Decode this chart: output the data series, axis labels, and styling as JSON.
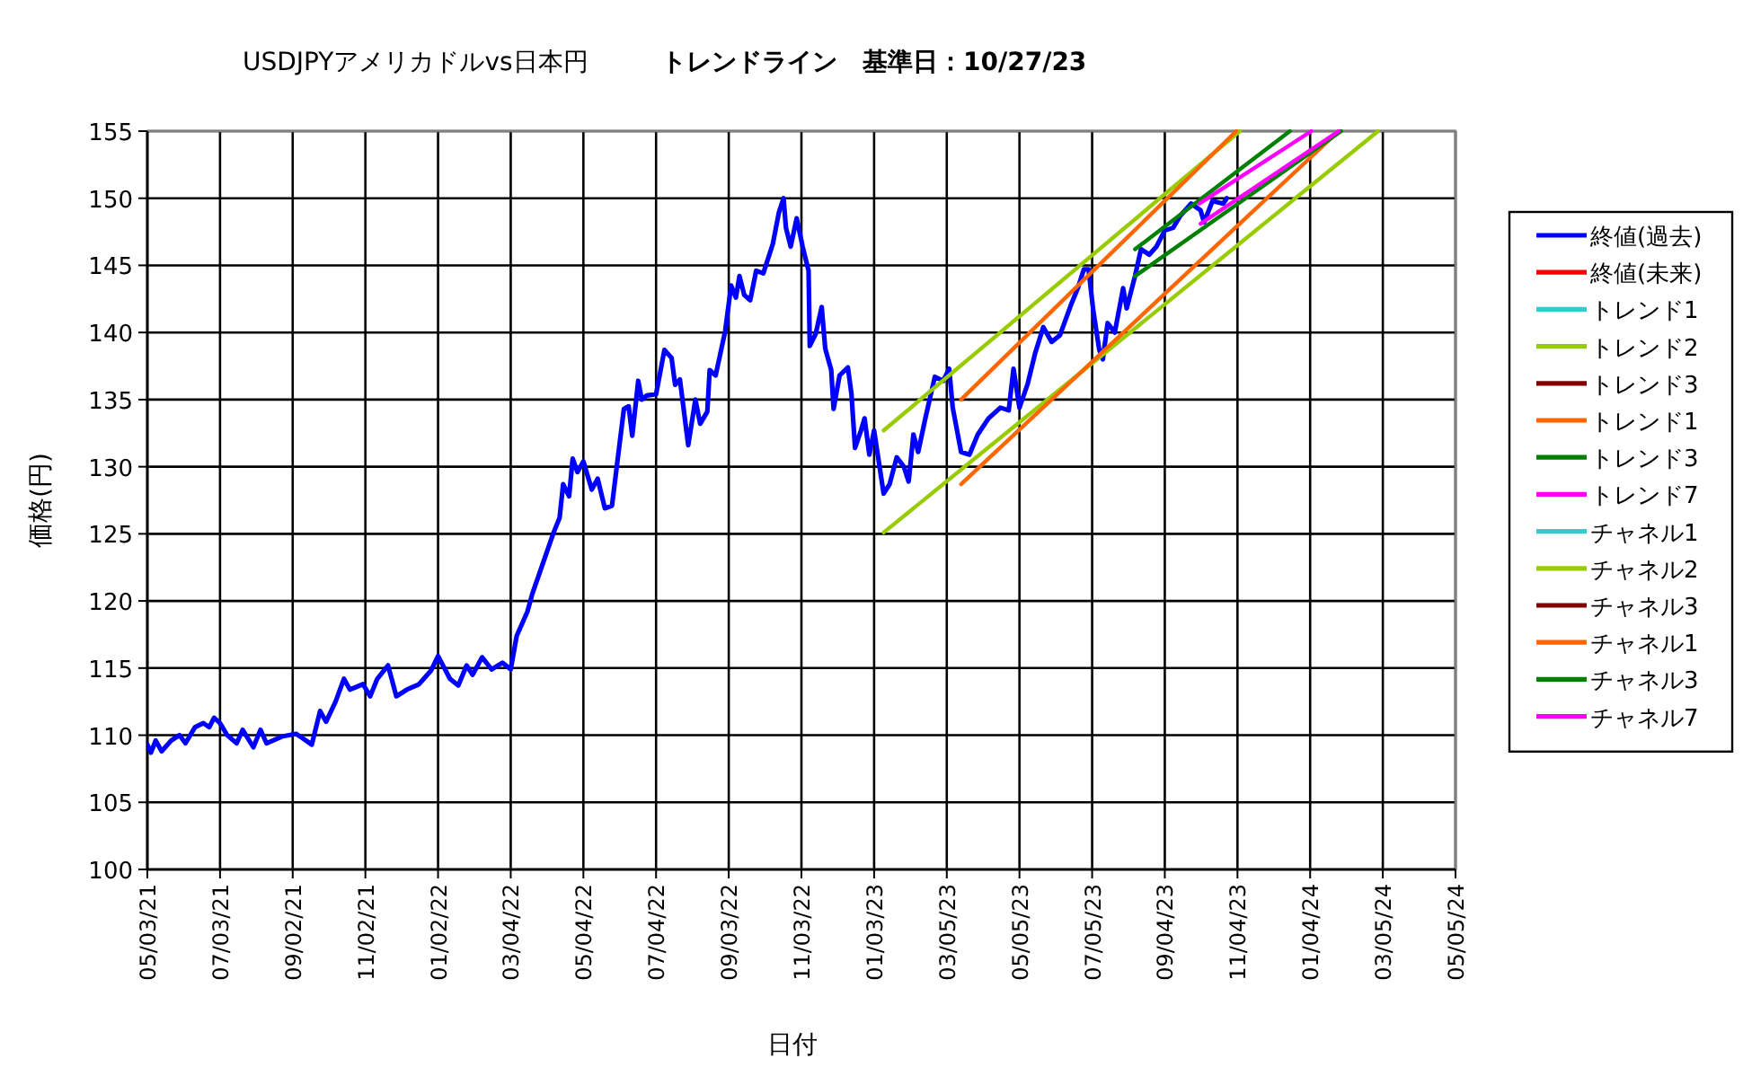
{
  "chart_data": {
    "type": "line",
    "title": "USDJPYアメリカドルvs日本円",
    "subtitle": "トレンドライン　基準日：10/27/23",
    "xlabel": "日付",
    "ylabel": "価格(円)",
    "xlim": [
      "2021-05-03",
      "2024-05-05"
    ],
    "xticks": [
      {
        "value": "2021-05-03",
        "label": "05/03/21"
      },
      {
        "value": "2021-07-03",
        "label": "07/03/21"
      },
      {
        "value": "2021-09-02",
        "label": "09/02/21"
      },
      {
        "value": "2021-11-02",
        "label": "11/02/21"
      },
      {
        "value": "2022-01-02",
        "label": "01/02/22"
      },
      {
        "value": "2022-03-04",
        "label": "03/04/22"
      },
      {
        "value": "2022-05-04",
        "label": "05/04/22"
      },
      {
        "value": "2022-07-04",
        "label": "07/04/22"
      },
      {
        "value": "2022-09-03",
        "label": "09/03/22"
      },
      {
        "value": "2022-11-03",
        "label": "11/03/22"
      },
      {
        "value": "2023-01-03",
        "label": "01/03/23"
      },
      {
        "value": "2023-03-05",
        "label": "03/05/23"
      },
      {
        "value": "2023-05-05",
        "label": "05/05/23"
      },
      {
        "value": "2023-07-05",
        "label": "07/05/23"
      },
      {
        "value": "2023-09-04",
        "label": "09/04/23"
      },
      {
        "value": "2023-11-04",
        "label": "11/04/23"
      },
      {
        "value": "2024-01-04",
        "label": "01/04/24"
      },
      {
        "value": "2024-03-05",
        "label": "03/05/24"
      },
      {
        "value": "2024-05-05",
        "label": "05/05/24"
      }
    ],
    "ylim": [
      100,
      155
    ],
    "yticks": [
      100,
      105,
      110,
      115,
      120,
      125,
      130,
      135,
      140,
      145,
      150,
      155
    ],
    "grid": true,
    "legend": "right",
    "marker": "none",
    "line_style": "solid",
    "series": [
      {
        "name": "終値(過去)",
        "color": "#0000ff",
        "x": [
          "2021-05-03",
          "2021-05-06",
          "2021-05-10",
          "2021-05-15",
          "2021-05-23",
          "2021-05-30",
          "2021-06-04",
          "2021-06-12",
          "2021-06-19",
          "2021-06-24",
          "2021-06-28",
          "2021-07-03",
          "2021-07-09",
          "2021-07-17",
          "2021-07-22",
          "2021-07-31",
          "2021-08-06",
          "2021-08-11",
          "2021-08-24",
          "2021-09-05",
          "2021-09-10",
          "2021-09-18",
          "2021-09-25",
          "2021-09-30",
          "2021-10-08",
          "2021-10-15",
          "2021-10-20",
          "2021-10-31",
          "2021-11-06",
          "2021-11-12",
          "2021-11-21",
          "2021-11-28",
          "2021-12-07",
          "2021-12-17",
          "2021-12-27",
          "2022-01-02",
          "2022-01-12",
          "2022-01-19",
          "2022-01-26",
          "2022-01-31",
          "2022-02-08",
          "2022-02-16",
          "2022-02-25",
          "2022-03-04",
          "2022-03-09",
          "2022-03-18",
          "2022-03-22",
          "2022-04-09",
          "2022-04-14",
          "2022-04-17",
          "2022-04-22",
          "2022-04-25",
          "2022-04-29",
          "2022-05-04",
          "2022-05-11",
          "2022-05-16",
          "2022-05-22",
          "2022-05-28",
          "2022-06-01",
          "2022-06-07",
          "2022-06-11",
          "2022-06-14",
          "2022-06-19",
          "2022-06-22",
          "2022-06-26",
          "2022-07-04",
          "2022-07-11",
          "2022-07-17",
          "2022-07-20",
          "2022-07-24",
          "2022-07-31",
          "2022-08-06",
          "2022-08-10",
          "2022-08-16",
          "2022-08-18",
          "2022-08-23",
          "2022-08-31",
          "2022-09-05",
          "2022-09-09",
          "2022-09-12",
          "2022-09-16",
          "2022-09-21",
          "2022-09-26",
          "2022-10-02",
          "2022-10-10",
          "2022-10-15",
          "2022-10-19",
          "2022-10-21",
          "2022-10-25",
          "2022-10-30",
          "2022-11-04",
          "2022-11-09",
          "2022-11-10",
          "2022-11-15",
          "2022-11-20",
          "2022-11-23",
          "2022-11-28",
          "2022-11-30",
          "2022-12-05",
          "2022-12-12",
          "2022-12-15",
          "2022-12-18",
          "2022-12-23",
          "2022-12-26",
          "2022-12-30",
          "2023-01-03",
          "2023-01-11",
          "2023-01-16",
          "2023-01-22",
          "2023-01-28",
          "2023-02-01",
          "2023-02-05",
          "2023-02-09",
          "2023-02-15",
          "2023-02-23",
          "2023-03-02",
          "2023-03-07",
          "2023-03-10",
          "2023-03-17",
          "2023-03-24",
          "2023-03-31",
          "2023-04-09",
          "2023-04-19",
          "2023-04-26",
          "2023-04-30",
          "2023-05-05",
          "2023-05-12",
          "2023-05-18",
          "2023-05-25",
          "2023-06-01",
          "2023-06-08",
          "2023-06-17",
          "2023-06-23",
          "2023-06-28",
          "2023-07-02",
          "2023-07-06",
          "2023-07-11",
          "2023-07-14",
          "2023-07-18",
          "2023-07-24",
          "2023-07-31",
          "2023-08-03",
          "2023-08-10",
          "2023-08-15",
          "2023-08-22",
          "2023-08-28",
          "2023-09-04",
          "2023-09-11",
          "2023-09-17",
          "2023-09-26",
          "2023-10-04",
          "2023-10-07",
          "2023-10-14",
          "2023-10-23",
          "2023-10-26"
        ],
        "values": [
          109.3,
          108.7,
          109.6,
          108.8,
          109.6,
          110.0,
          109.4,
          110.6,
          110.9,
          110.6,
          111.3,
          110.9,
          110.0,
          109.4,
          110.4,
          109.1,
          110.4,
          109.4,
          109.9,
          110.1,
          109.8,
          109.3,
          111.8,
          111.0,
          112.5,
          114.2,
          113.4,
          113.8,
          112.9,
          114.2,
          115.2,
          112.9,
          113.4,
          113.8,
          114.8,
          115.9,
          114.2,
          113.7,
          115.2,
          114.5,
          115.8,
          114.9,
          115.4,
          114.9,
          117.4,
          119.2,
          120.5,
          125.1,
          126.2,
          128.7,
          127.8,
          130.6,
          129.6,
          130.4,
          128.3,
          129.1,
          126.9,
          127.1,
          130.0,
          134.3,
          134.5,
          132.3,
          136.4,
          135.0,
          135.3,
          135.4,
          138.7,
          138.1,
          136.1,
          136.5,
          131.6,
          135.0,
          133.2,
          134.1,
          137.2,
          136.8,
          140.1,
          143.5,
          142.6,
          144.2,
          142.8,
          142.4,
          144.6,
          144.4,
          146.6,
          148.9,
          150.0,
          147.8,
          146.4,
          148.5,
          146.4,
          144.6,
          139.0,
          139.9,
          141.9,
          138.8,
          137.2,
          134.3,
          136.8,
          137.4,
          135.4,
          131.4,
          132.7,
          133.6,
          130.9,
          132.7,
          128.0,
          128.7,
          130.7,
          130.0,
          128.9,
          132.4,
          131.1,
          133.6,
          136.7,
          136.4,
          137.3,
          134.4,
          131.1,
          130.9,
          132.4,
          133.6,
          134.4,
          134.2,
          137.3,
          134.4,
          136.2,
          138.4,
          140.4,
          139.3,
          139.8,
          142.0,
          143.3,
          144.7,
          144.7,
          141.6,
          138.7,
          138.0,
          140.7,
          140.0,
          143.3,
          141.8,
          144.2,
          146.2,
          145.8,
          146.4,
          147.6,
          147.8,
          148.7,
          149.6,
          149.1,
          148.2,
          149.8,
          149.6,
          150.0
        ]
      },
      {
        "name": "終値(未来)",
        "color": "#ff0000"
      },
      {
        "name": "トレンド1",
        "color": "#33cccc"
      },
      {
        "name": "トレンド2",
        "color": "#99cc00",
        "x": [
          "2023-01-11",
          "2024-03-01"
        ],
        "values": [
          125.1,
          155.0
        ]
      },
      {
        "name": "トレンド3",
        "color": "#800000"
      },
      {
        "name": "トレンド1",
        "color": "#ff6600",
        "x": [
          "2023-03-17",
          "2024-01-28"
        ],
        "values": [
          128.7,
          155.0
        ]
      },
      {
        "name": "トレンド3",
        "color": "#008000",
        "x": [
          "2023-08-10",
          "2024-01-30"
        ],
        "values": [
          144.2,
          155.0
        ]
      },
      {
        "name": "トレンド7",
        "color": "#ff00ff",
        "x": [
          "2023-10-04",
          "2024-01-28"
        ],
        "values": [
          148.1,
          155.0
        ]
      },
      {
        "name": "チャネル1",
        "color": "#33cccc"
      },
      {
        "name": "チャネル2",
        "color": "#99cc00",
        "x": [
          "2023-01-11",
          "2023-11-06"
        ],
        "values": [
          132.7,
          155.0
        ]
      },
      {
        "name": "チャネル3",
        "color": "#800000"
      },
      {
        "name": "チャネル1",
        "color": "#ff6600",
        "x": [
          "2023-03-17",
          "2023-11-03"
        ],
        "values": [
          135.0,
          155.0
        ]
      },
      {
        "name": "チャネル3",
        "color": "#008000",
        "x": [
          "2023-08-10",
          "2023-12-18"
        ],
        "values": [
          146.2,
          155.0
        ]
      },
      {
        "name": "チャネル7",
        "color": "#ff00ff",
        "x": [
          "2023-10-03",
          "2024-01-05"
        ],
        "values": [
          149.6,
          155.0
        ]
      }
    ]
  }
}
